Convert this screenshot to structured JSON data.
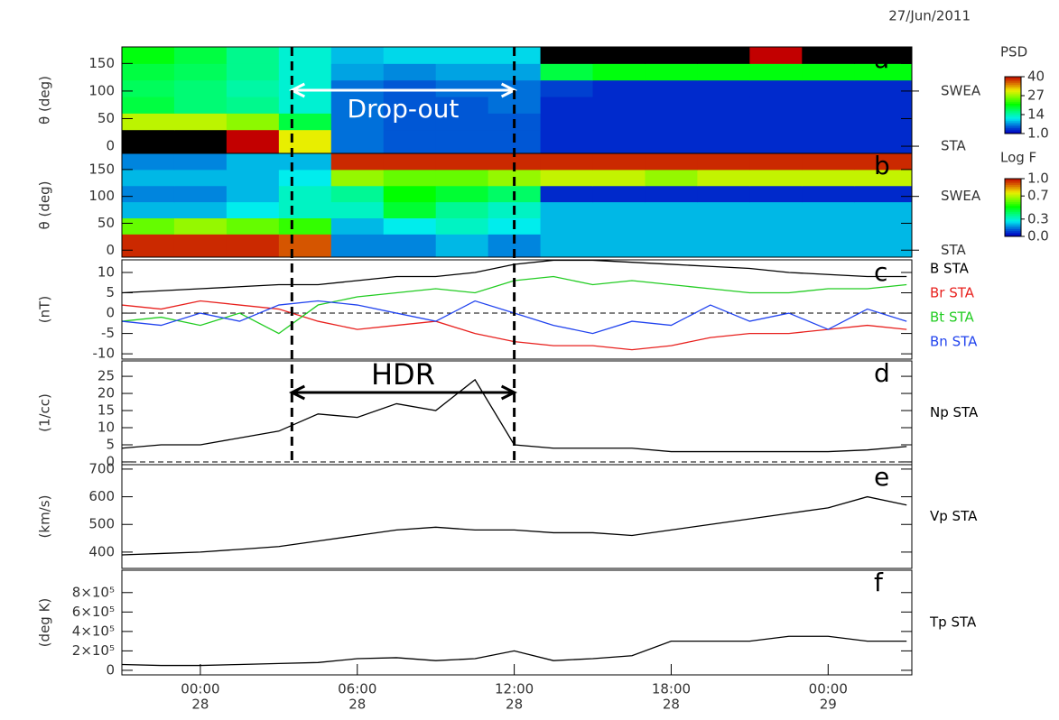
{
  "date": "27/Jun/2011",
  "event_times": [
    3.5,
    12
  ],
  "chart_data": [
    {
      "type": "heatmap",
      "label": "a",
      "ylabel": "θ (deg)",
      "xlim": [
        -3,
        27.2
      ],
      "ylim": [
        -13,
        180
      ],
      "yticks": [
        0,
        50,
        100,
        150
      ],
      "y2ticks": [
        {
          "value": 100,
          "label": "SWEA"
        },
        {
          "value": 0,
          "label": "STA"
        }
      ],
      "x_edges": [
        -3,
        -1,
        1,
        3,
        5,
        7,
        9,
        11,
        13,
        15,
        17,
        19,
        21,
        23,
        25,
        27.2
      ],
      "y_edges": [
        0,
        30,
        60,
        90,
        120,
        150,
        180
      ],
      "z": [
        [
          42,
          42,
          40,
          30,
          6,
          5,
          5,
          5,
          3,
          3,
          3,
          3,
          3,
          3,
          3
        ],
        [
          28,
          28,
          26,
          18,
          6,
          5,
          5,
          5,
          3,
          3,
          3,
          3,
          3,
          3,
          3
        ],
        [
          18,
          16,
          15,
          12,
          6,
          5,
          5,
          6,
          3,
          3,
          3,
          3,
          3,
          3,
          3
        ],
        [
          17,
          16,
          14,
          12,
          6,
          5,
          6,
          6,
          4,
          3,
          3,
          3,
          3,
          3,
          3
        ],
        [
          18,
          17,
          15,
          12,
          8,
          7,
          8,
          8,
          18,
          20,
          20,
          20,
          20,
          20,
          20
        ],
        [
          20,
          18,
          15,
          12,
          9,
          10,
          10,
          10,
          45,
          45,
          45,
          42,
          40,
          42,
          42
        ]
      ],
      "zlim": [
        1,
        40
      ],
      "colorbar": {
        "title": "PSD",
        "ticks": [
          40,
          27,
          14,
          {
            "value": 1,
            "label": "1.0"
          }
        ]
      },
      "annotations": [
        {
          "text": "Drop-out",
          "x": [
            3.5,
            12
          ]
        }
      ]
    },
    {
      "type": "heatmap",
      "label": "b",
      "ylabel": "θ (deg)",
      "xlim": [
        -3,
        27.2
      ],
      "ylim": [
        -13,
        180
      ],
      "yticks": [
        0,
        50,
        100,
        150
      ],
      "y2ticks": [
        {
          "value": 100,
          "label": "SWEA"
        },
        {
          "value": 0,
          "label": "STA"
        }
      ],
      "x_edges": [
        -3,
        -1,
        1,
        3,
        5,
        7,
        9,
        11,
        13,
        15,
        17,
        19,
        21,
        23,
        25,
        27.2
      ],
      "y_edges": [
        0,
        30,
        60,
        90,
        120,
        150,
        180
      ],
      "z": [
        [
          0.95,
          0.95,
          0.95,
          0.9,
          0.15,
          0.15,
          0.2,
          0.15,
          0.2,
          0.2,
          0.2,
          0.2,
          0.2,
          0.2,
          0.2
        ],
        [
          0.6,
          0.65,
          0.6,
          0.55,
          0.2,
          0.25,
          0.3,
          0.25,
          0.2,
          0.2,
          0.2,
          0.2,
          0.2,
          0.2,
          0.2
        ],
        [
          0.2,
          0.2,
          0.25,
          0.3,
          0.3,
          0.45,
          0.35,
          0.3,
          0.2,
          0.2,
          0.2,
          0.2,
          0.2,
          0.2,
          0.2
        ],
        [
          0.15,
          0.15,
          0.2,
          0.3,
          0.35,
          0.5,
          0.45,
          0.4,
          0.05,
          0.05,
          0.05,
          0.05,
          0.05,
          0.05,
          0.05
        ],
        [
          0.2,
          0.2,
          0.2,
          0.25,
          0.65,
          0.6,
          0.6,
          0.65,
          0.7,
          0.7,
          0.65,
          0.7,
          0.7,
          0.7,
          0.7
        ],
        [
          0.15,
          0.15,
          0.2,
          0.2,
          0.95,
          0.95,
          0.95,
          0.95,
          0.95,
          0.95,
          0.95,
          0.95,
          0.95,
          0.95,
          0.95
        ]
      ],
      "zlim": [
        0,
        1
      ],
      "colorbar": {
        "title": "Log F",
        "ticks": [
          {
            "value": 1,
            "label": "1.0"
          },
          0.7,
          0.3,
          {
            "value": 0,
            "label": "0.0"
          }
        ]
      }
    },
    {
      "type": "line",
      "label": "c",
      "ylabel": "(nT)",
      "xlim": [
        -3,
        27.2
      ],
      "ylim": [
        -11.3,
        13.1
      ],
      "yticks": [
        -10,
        -5,
        0,
        5,
        10
      ],
      "zero_line": true,
      "x": [
        -3,
        -1.5,
        0,
        1.5,
        3,
        4.5,
        6,
        7.5,
        9,
        10.5,
        12,
        13.5,
        15,
        16.5,
        18,
        19.5,
        21,
        22.5,
        24,
        25.5,
        27
      ],
      "series": [
        {
          "name": "B STA",
          "color": "#000000",
          "values": [
            5,
            5.5,
            6,
            6.5,
            7,
            7,
            8,
            9,
            9,
            10,
            12,
            13,
            13,
            12.5,
            12,
            11.5,
            11,
            10,
            9.5,
            9,
            9
          ]
        },
        {
          "name": "Br STA",
          "color": "#e8211e",
          "values": [
            2,
            1,
            3,
            2,
            1,
            -2,
            -4,
            -3,
            -2,
            -5,
            -7,
            -8,
            -8,
            -9,
            -8,
            -6,
            -5,
            -5,
            -4,
            -3,
            -4
          ]
        },
        {
          "name": "Bt STA",
          "color": "#22cc22",
          "values": [
            -2,
            -1,
            -3,
            0,
            -5,
            2,
            4,
            5,
            6,
            5,
            8,
            9,
            7,
            8,
            7,
            6,
            5,
            5,
            6,
            6,
            7
          ]
        },
        {
          "name": "Bn STA",
          "color": "#2244ee",
          "values": [
            -2,
            -3,
            0,
            -2,
            2,
            3,
            2,
            0,
            -2,
            3,
            0,
            -3,
            -5,
            -2,
            -3,
            2,
            -2,
            0,
            -4,
            1,
            -2
          ]
        }
      ]
    },
    {
      "type": "line",
      "label": "d",
      "ylabel": "(1/cc)",
      "xlim": [
        -3,
        27.2
      ],
      "ylim": [
        -0.8,
        29.5
      ],
      "yticks": [
        0,
        5,
        10,
        15,
        20,
        25
      ],
      "zero_line": true,
      "x": [
        -3,
        -1.5,
        0,
        1.5,
        3,
        4.5,
        6,
        7.5,
        9,
        10.5,
        12,
        13.5,
        15,
        16.5,
        18,
        19.5,
        21,
        22.5,
        24,
        25.5,
        27
      ],
      "series": [
        {
          "name": "Np STA",
          "color": "#000000",
          "values": [
            4,
            5,
            5,
            7,
            9,
            14,
            13,
            17,
            15,
            24,
            5,
            4,
            4,
            4,
            3,
            3,
            3,
            3,
            3,
            3.5,
            4.5
          ]
        }
      ],
      "annotations": [
        {
          "text": "HDR",
          "x": [
            3.5,
            12
          ]
        }
      ]
    },
    {
      "type": "line",
      "label": "e",
      "ylabel": "(km/s)",
      "xlim": [
        -3,
        27.2
      ],
      "ylim": [
        341,
        716
      ],
      "yticks": [
        400,
        500,
        600,
        700
      ],
      "x": [
        -3,
        -1.5,
        0,
        1.5,
        3,
        4.5,
        6,
        7.5,
        9,
        10.5,
        12,
        13.5,
        15,
        16.5,
        18,
        19.5,
        21,
        22.5,
        24,
        25.5,
        27
      ],
      "series": [
        {
          "name": "Vp STA",
          "color": "#000000",
          "values": [
            390,
            395,
            400,
            410,
            420,
            440,
            460,
            480,
            490,
            480,
            480,
            470,
            470,
            460,
            480,
            500,
            520,
            540,
            560,
            600,
            570
          ]
        }
      ]
    },
    {
      "type": "line",
      "label": "f",
      "ylabel": "(deg K)",
      "xlim": [
        -3,
        27.2
      ],
      "ylim": [
        -47000,
        1030000
      ],
      "yticks": [
        0,
        {
          "value": 200000,
          "label": "2×10⁵"
        },
        {
          "value": 400000,
          "label": "4×10⁵"
        },
        {
          "value": 600000,
          "label": "6×10⁵"
        },
        {
          "value": 800000,
          "label": "8×10⁵"
        }
      ],
      "xticks": [
        {
          "value": 0,
          "label": "00:00"
        },
        {
          "value": 6,
          "label": "06:00"
        },
        {
          "value": 12,
          "label": "12:00"
        },
        {
          "value": 18,
          "label": "18:00"
        },
        {
          "value": 24,
          "label": "00:00"
        }
      ],
      "xtick_days": [
        "28",
        "28",
        "28",
        "28",
        "29"
      ],
      "x": [
        -3,
        -1.5,
        0,
        1.5,
        3,
        4.5,
        6,
        7.5,
        9,
        10.5,
        12,
        13.5,
        15,
        16.5,
        18,
        19.5,
        21,
        22.5,
        24,
        25.5,
        27
      ],
      "series": [
        {
          "name": "Tp STA",
          "color": "#000000",
          "values": [
            60000,
            50000,
            50000,
            60000,
            70000,
            80000,
            120000,
            130000,
            100000,
            120000,
            200000,
            100000,
            120000,
            150000,
            300000,
            300000,
            300000,
            350000,
            350000,
            300000,
            300000
          ]
        }
      ]
    }
  ]
}
